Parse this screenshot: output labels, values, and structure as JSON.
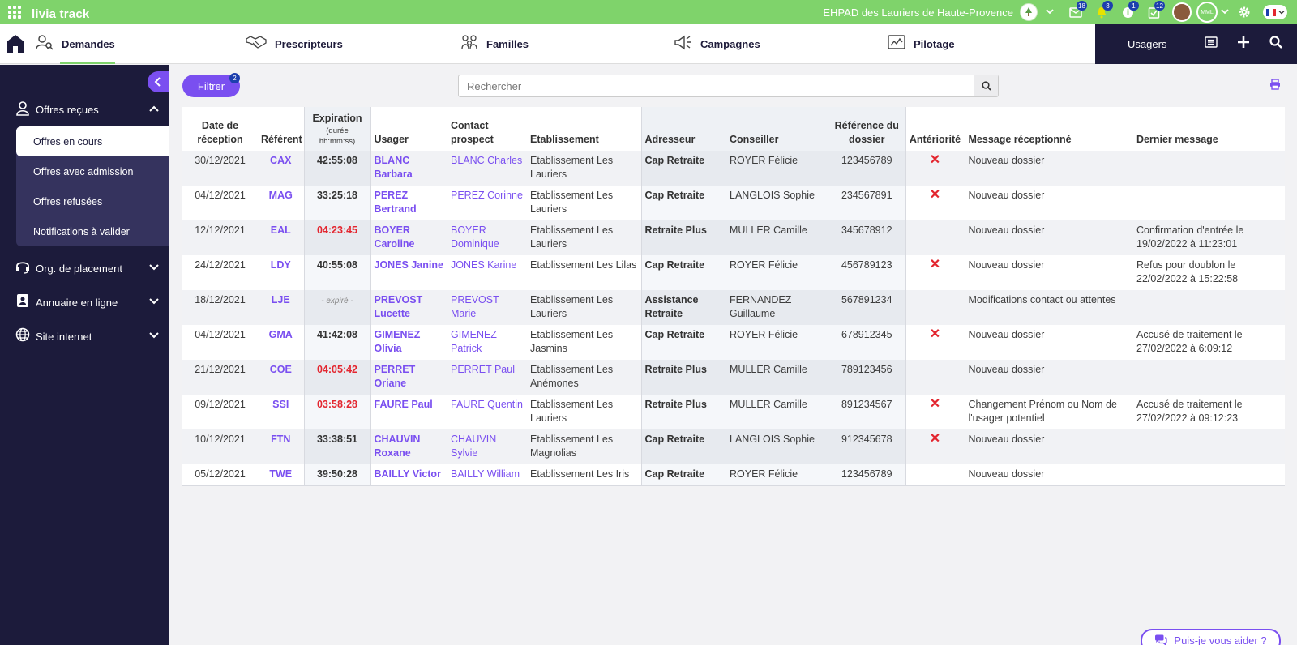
{
  "app": {
    "brand": "livia track"
  },
  "topbar": {
    "establishment": "EHPAD des Lauriers de Haute-Provence",
    "establishment_logo": "Les Lauriers",
    "badges": {
      "mail": "18",
      "notif": "3",
      "info": "1",
      "tasks": "12"
    },
    "initials": "MML"
  },
  "nav": {
    "items": [
      {
        "label": "Demandes",
        "icon": "search-person-icon"
      },
      {
        "label": "Prescripteurs",
        "icon": "handshake-icon"
      },
      {
        "label": "Familles",
        "icon": "family-icon"
      },
      {
        "label": "Campagnes",
        "icon": "megaphone-icon"
      },
      {
        "label": "Pilotage",
        "icon": "chart-icon"
      }
    ],
    "usagers": "Usagers"
  },
  "sidebar": {
    "groups": [
      {
        "label": "Offres reçues"
      },
      {
        "label": "Org. de placement"
      },
      {
        "label": "Annuaire en ligne"
      },
      {
        "label": "Site internet"
      }
    ],
    "subitems": [
      {
        "label": "Offres en cours"
      },
      {
        "label": "Offres avec admission"
      },
      {
        "label": "Offres refusées"
      },
      {
        "label": "Notifications à valider"
      }
    ]
  },
  "toolbar": {
    "filter_label": "Filtrer",
    "filter_count": "2",
    "search_placeholder": "Rechercher"
  },
  "table": {
    "headers": {
      "date": "Date de réception",
      "referent": "Référent",
      "expiration": "Expiration",
      "expiration_sub": "(durée hh:mm:ss)",
      "usager": "Usager",
      "contact": "Contact prospect",
      "etablissement": "Etablissement",
      "adresseur": "Adresseur",
      "conseiller": "Conseiller",
      "reference": "Référence du dossier",
      "anteriorite": "Antériorité",
      "message": "Message réceptionné",
      "dernier": "Dernier message"
    },
    "rows": [
      {
        "date": "30/12/2021",
        "referent": "CAX",
        "expiration": "42:55:08",
        "exp_style": "",
        "usager": "BLANC Barbara",
        "contact": "BLANC Charles",
        "etablissement": "Etablissement Les Lauriers",
        "adresseur": "Cap Retraite",
        "conseiller": "ROYER Félicie",
        "reference": "123456789",
        "anteriorite": "✕",
        "message": "Nouveau dossier",
        "dernier": ""
      },
      {
        "date": "04/12/2021",
        "referent": "MAG",
        "expiration": "33:25:18",
        "exp_style": "",
        "usager": "PEREZ Bertrand",
        "contact": "PEREZ Corinne",
        "etablissement": "Etablissement Les Lauriers",
        "adresseur": "Cap Retraite",
        "conseiller": "LANGLOIS Sophie",
        "reference": "234567891",
        "anteriorite": "✕",
        "message": "Nouveau dossier",
        "dernier": ""
      },
      {
        "date": "12/12/2021",
        "referent": "EAL",
        "expiration": "04:23:45",
        "exp_style": "red",
        "usager": "BOYER Caroline",
        "contact": "BOYER Dominique",
        "etablissement": "Etablissement Les Lauriers",
        "adresseur": "Retraite Plus",
        "conseiller": "MULLER Camille",
        "reference": "345678912",
        "anteriorite": "",
        "message": "Nouveau dossier",
        "dernier": "Confirmation d'entrée le 19/02/2022 à 11:23:01"
      },
      {
        "date": "24/12/2021",
        "referent": "LDY",
        "expiration": "40:55:08",
        "exp_style": "",
        "usager": "JONES Janine",
        "contact": "JONES Karine",
        "etablissement": "Etablissement Les Lilas",
        "adresseur": "Cap Retraite",
        "conseiller": "ROYER Félicie",
        "reference": "456789123",
        "anteriorite": "✕",
        "message": "Nouveau dossier",
        "dernier": "Refus pour doublon le 22/02/2022 à 15:22:58"
      },
      {
        "date": "18/12/2021",
        "referent": "LJE",
        "expiration": "- expiré -",
        "exp_style": "expired",
        "usager": "PREVOST Lucette",
        "contact": "PREVOST Marie",
        "etablissement": "Etablissement Les Lauriers",
        "adresseur": "Assistance Retraite",
        "conseiller": "FERNANDEZ Guillaume",
        "reference": "567891234",
        "anteriorite": "",
        "message": "Modifications contact ou attentes",
        "dernier": ""
      },
      {
        "date": "04/12/2021",
        "referent": "GMA",
        "expiration": "41:42:08",
        "exp_style": "",
        "usager": "GIMENEZ Olivia",
        "contact": "GIMENEZ Patrick",
        "etablissement": "Etablissement Les Jasmins",
        "adresseur": "Cap Retraite",
        "conseiller": "ROYER Félicie",
        "reference": "678912345",
        "anteriorite": "✕",
        "message": "Nouveau dossier",
        "dernier": "Accusé de traitement le 27/02/2022 à 6:09:12"
      },
      {
        "date": "21/12/2021",
        "referent": "COE",
        "expiration": "04:05:42",
        "exp_style": "red",
        "usager": "PERRET Oriane",
        "contact": "PERRET Paul",
        "etablissement": "Etablissement Les Anémones",
        "adresseur": "Retraite Plus",
        "conseiller": "MULLER Camille",
        "reference": "789123456",
        "anteriorite": "",
        "message": "Nouveau dossier",
        "dernier": ""
      },
      {
        "date": "09/12/2021",
        "referent": "SSI",
        "expiration": "03:58:28",
        "exp_style": "red",
        "usager": "FAURE Paul",
        "contact": "FAURE Quentin",
        "etablissement": "Etablissement Les Lauriers",
        "adresseur": "Retraite Plus",
        "conseiller": "MULLER Camille",
        "reference": "891234567",
        "anteriorite": "✕",
        "message": "Changement Prénom ou Nom de l'usager potentiel",
        "dernier": "Accusé de traitement le 27/02/2022 à 09:12:23"
      },
      {
        "date": "10/12/2021",
        "referent": "FTN",
        "expiration": "33:38:51",
        "exp_style": "",
        "usager": "CHAUVIN Roxane",
        "contact": "CHAUVIN Sylvie",
        "etablissement": "Etablissement Les Magnolias",
        "adresseur": "Cap Retraite",
        "conseiller": "LANGLOIS Sophie",
        "reference": "912345678",
        "anteriorite": "✕",
        "message": "Nouveau dossier",
        "dernier": ""
      },
      {
        "date": "05/12/2021",
        "referent": "TWE",
        "expiration": "39:50:28",
        "exp_style": "",
        "usager": "BAILLY Victor",
        "contact": "BAILLY William",
        "etablissement": "Etablissement Les Iris",
        "adresseur": "Cap Retraite",
        "conseiller": "ROYER Félicie",
        "reference": "123456789",
        "anteriorite": "",
        "message": "Nouveau dossier",
        "dernier": ""
      }
    ]
  },
  "help": {
    "label": "Puis-je vous aider ?"
  },
  "colors": {
    "accent": "#7a4ff0",
    "topbar": "#7fd36b",
    "sidebar": "#1c1b3b",
    "danger": "#e3262f"
  }
}
